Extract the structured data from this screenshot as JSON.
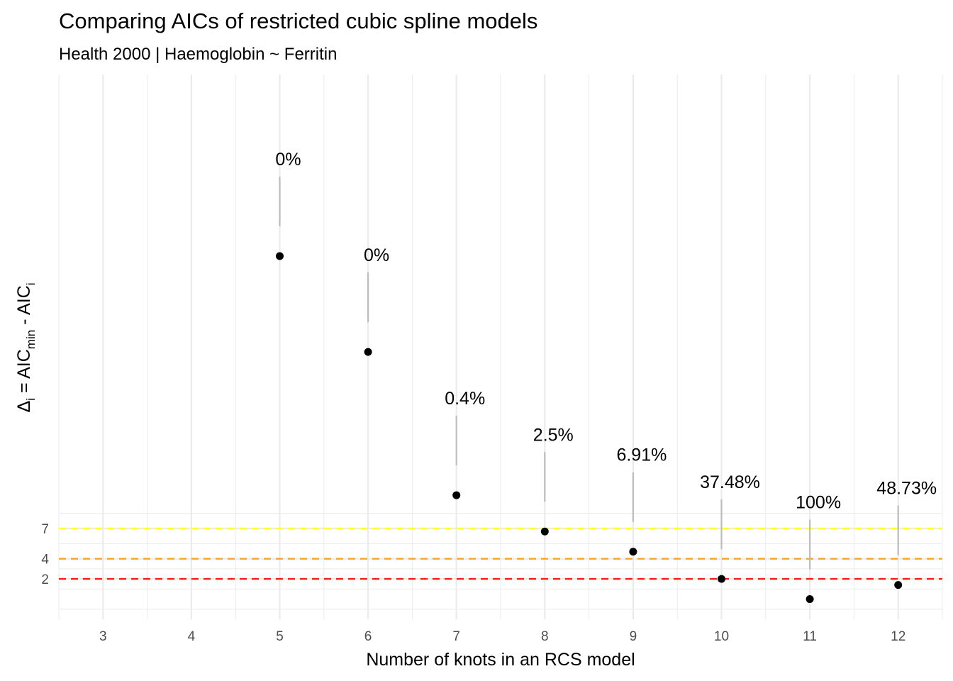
{
  "chart_data": {
    "type": "scatter",
    "title": "Comparing AICs of restricted cubic spline models",
    "subtitle": "Health 2000 | Haemoglobin ~ Ferritin",
    "xlabel": "Number of knots in an RCS model",
    "ylabel": {
      "delta": "Δ",
      "sub_i": "i",
      "eq": " = AIC",
      "sub_min": "min",
      "minus": " - AIC",
      "sub_i2": "i"
    },
    "x_ticks": [
      "3",
      "4",
      "5",
      "6",
      "7",
      "8",
      "9",
      "10",
      "11",
      "12"
    ],
    "y_ticks": [
      "2",
      "4",
      "7"
    ],
    "xlim": [
      2.5,
      12.5
    ],
    "ylim": [
      -2,
      52
    ],
    "grid": true,
    "points": [
      {
        "x": 5,
        "y": 34,
        "label": "0%"
      },
      {
        "x": 6,
        "y": 24.5,
        "label": "0%"
      },
      {
        "x": 7,
        "y": 10.3,
        "label": "0.4%"
      },
      {
        "x": 8,
        "y": 6.7,
        "label": "2.5%"
      },
      {
        "x": 9,
        "y": 4.7,
        "label": "6.91%"
      },
      {
        "x": 10,
        "y": 2,
        "label": "37.48%"
      },
      {
        "x": 11,
        "y": 0,
        "label": "100%"
      },
      {
        "x": 12,
        "y": 1.4,
        "label": "48.73%"
      }
    ],
    "reference_lines": [
      {
        "y": 7,
        "color": "#ffff33"
      },
      {
        "y": 4,
        "color": "#f5a623"
      },
      {
        "y": 2,
        "color": "#ff1a1a"
      }
    ],
    "point_color": "#000000",
    "connector_color": "#bdbdbd"
  }
}
